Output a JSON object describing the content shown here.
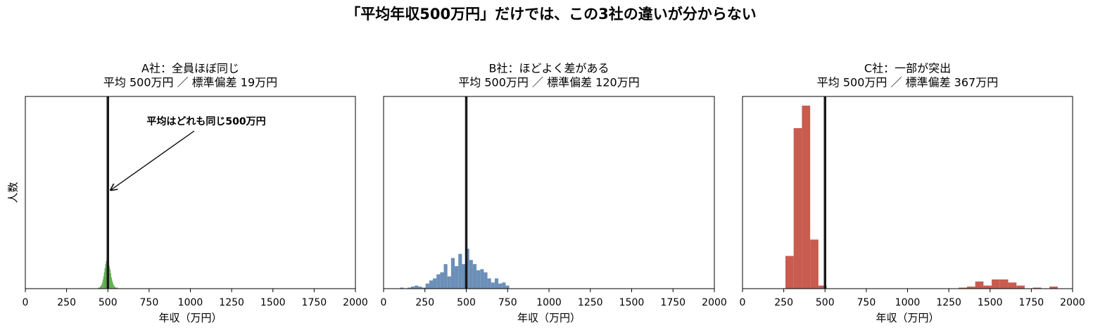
{
  "title": "「平均年収500万円」だけでは、この3社の違いが分からない",
  "chart_data": [
    {
      "type": "histogram",
      "title": "A社：全員ほぼ同じ",
      "subtitle": "平均 500万円 ／ 標準偏差 19万円",
      "x_label": "年収（万円）",
      "y_label": "人数",
      "color": "#5aa84b",
      "bins": [
        440,
        444,
        448,
        452,
        456,
        460,
        464,
        468,
        472,
        476,
        480,
        484,
        488,
        492,
        496,
        500,
        504,
        508,
        512,
        516,
        520,
        524,
        528,
        532,
        536,
        540,
        544,
        548,
        552,
        556,
        560
      ],
      "counts": [
        1,
        1,
        1,
        2,
        3,
        4,
        6,
        9,
        12,
        16,
        20,
        24,
        27,
        30,
        29,
        28,
        26,
        22,
        19,
        15,
        11,
        8,
        6,
        4,
        3,
        2,
        1,
        1,
        1,
        1
      ],
      "mean_line": 500,
      "annotation": "平均はどれも同じ500万円",
      "xlim": [
        0,
        2000
      ],
      "xticks": [
        0,
        250,
        500,
        750,
        1000,
        1250,
        1500,
        1750,
        2000
      ],
      "ylim": [
        0,
        188
      ]
    },
    {
      "type": "histogram",
      "title": "B社：ほどよく差がある",
      "subtitle": "平均 500万円 ／ 標準偏差 120万円",
      "x_label": "年収（万円）",
      "color": "#6b8fb8",
      "bins": [
        100,
        122,
        144,
        166,
        188,
        210,
        232,
        254,
        276,
        298,
        320,
        342,
        364,
        386,
        408,
        430,
        452,
        474,
        496,
        518,
        540,
        562,
        584,
        606,
        628,
        650,
        672,
        694,
        716,
        738,
        760
      ],
      "counts": [
        1,
        0,
        1,
        2,
        3,
        2,
        1,
        5,
        8,
        10,
        14,
        16,
        24,
        12,
        30,
        22,
        34,
        24,
        39,
        28,
        24,
        18,
        19,
        16,
        10,
        6,
        10,
        5,
        6,
        3
      ],
      "mean_line": 500,
      "xlim": [
        0,
        2000
      ],
      "xticks": [
        0,
        250,
        500,
        750,
        1000,
        1250,
        1500,
        1750,
        2000
      ],
      "ylim": [
        0,
        188
      ]
    },
    {
      "type": "histogram",
      "title": "C社：一部が突出",
      "subtitle": "平均 500万円 ／ 標準偏差 367万円",
      "x_label": "年収（万円）",
      "color": "#c95b4f",
      "bins": [
        260,
        310,
        360,
        410,
        460,
        510,
        560,
        610,
        660,
        710,
        760,
        810,
        860,
        910,
        960,
        1010,
        1060,
        1110,
        1160,
        1210,
        1260,
        1310,
        1360,
        1410,
        1460,
        1510,
        1560,
        1610,
        1660,
        1710,
        1760,
        1810,
        1860,
        1910,
        1960
      ],
      "counts": [
        32,
        157,
        179,
        48,
        3,
        0,
        0,
        0,
        0,
        0,
        0,
        0,
        0,
        0,
        0,
        0,
        0,
        0,
        0,
        0,
        0,
        1,
        2,
        7,
        3,
        9,
        9,
        6,
        3,
        0,
        1,
        0,
        2,
        0
      ],
      "mean_line": 500,
      "xlim": [
        0,
        2000
      ],
      "xticks": [
        0,
        250,
        500,
        750,
        1000,
        1250,
        1500,
        1750,
        2000
      ],
      "ylim": [
        0,
        188
      ]
    }
  ]
}
